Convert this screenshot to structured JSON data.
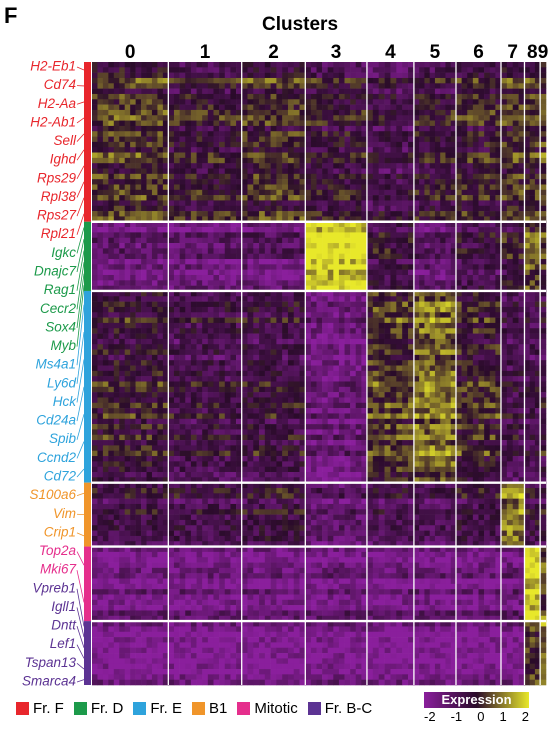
{
  "panel_letter": "F",
  "colors": {
    "Fr. F": "#e8262c",
    "Fr. D": "#1c9a4a",
    "Fr. E": "#2ea3dc",
    "B1": "#f0952a",
    "Mitotic": "#e52e8c",
    "Fr. B-C": "#5c3393",
    "low": "#8a1f9c",
    "mid": "#2a0b2a",
    "high": "#e8e82a"
  },
  "legend": {
    "items": [
      "Fr. F",
      "Fr. D",
      "Fr. E",
      "B1",
      "Mitotic",
      "Fr. B-C"
    ]
  },
  "colorbar": {
    "title": "Expression",
    "ticks": [
      "-2",
      "-1",
      "0",
      "1",
      "2"
    ]
  },
  "chart_data": {
    "type": "heatmap",
    "title": "Clusters",
    "clusters": [
      "0",
      "1",
      "2",
      "3",
      "4",
      "5",
      "6",
      "7",
      "8",
      "9"
    ],
    "cluster_widths": [
      78,
      75,
      65,
      63,
      48,
      43,
      46,
      24,
      16,
      6
    ],
    "color_scale": [
      -2,
      2
    ],
    "genes": [
      {
        "name": "H2-Eb1",
        "group": "Fr. F"
      },
      {
        "name": "Cd74",
        "group": "Fr. F"
      },
      {
        "name": "H2-Aa",
        "group": "Fr. F"
      },
      {
        "name": "H2-Ab1",
        "group": "Fr. F"
      },
      {
        "name": "Sell",
        "group": "Fr. F"
      },
      {
        "name": "Ighd",
        "group": "Fr. F"
      },
      {
        "name": "Rps29",
        "group": "Fr. F"
      },
      {
        "name": "Rpl38",
        "group": "Fr. F"
      },
      {
        "name": "Rps27",
        "group": "Fr. F"
      },
      {
        "name": "Rpl21",
        "group": "Fr. F"
      },
      {
        "name": "Igkc",
        "group": "Fr. D"
      },
      {
        "name": "Dnajc7",
        "group": "Fr. D"
      },
      {
        "name": "Rag1",
        "group": "Fr. D"
      },
      {
        "name": "Cecr2",
        "group": "Fr. D"
      },
      {
        "name": "Sox4",
        "group": "Fr. D"
      },
      {
        "name": "Myb",
        "group": "Fr. D"
      },
      {
        "name": "Ms4a1",
        "group": "Fr. E"
      },
      {
        "name": "Ly6d",
        "group": "Fr. E"
      },
      {
        "name": "Hck",
        "group": "Fr. E"
      },
      {
        "name": "Cd24a",
        "group": "Fr. E"
      },
      {
        "name": "Spib",
        "group": "Fr. E"
      },
      {
        "name": "Ccnd2",
        "group": "Fr. E"
      },
      {
        "name": "Cd72",
        "group": "Fr. E"
      },
      {
        "name": "S100a6",
        "group": "B1"
      },
      {
        "name": "Vim",
        "group": "B1"
      },
      {
        "name": "Crip1",
        "group": "B1"
      },
      {
        "name": "Top2a",
        "group": "Mitotic"
      },
      {
        "name": "Mki67",
        "group": "Mitotic"
      },
      {
        "name": "Vpreb1",
        "group": "Fr. B-C"
      },
      {
        "name": "Igll1",
        "group": "Fr. B-C"
      },
      {
        "name": "Dntt",
        "group": "Fr. B-C"
      },
      {
        "name": "Lef1",
        "group": "Fr. B-C"
      },
      {
        "name": "Tspan13",
        "group": "Fr. B-C"
      },
      {
        "name": "Smarca4",
        "group": "Fr. B-C"
      }
    ],
    "row_groups": [
      {
        "group": "Fr. F",
        "rows": 30
      },
      {
        "group": "Fr. D",
        "rows": 13
      },
      {
        "group": "Fr. E",
        "rows": 36
      },
      {
        "group": "B1",
        "rows": 12
      },
      {
        "group": "Mitotic",
        "rows": 14
      },
      {
        "group": "Fr. B-C",
        "rows": 12
      }
    ],
    "group_cluster_mean": {
      "Fr. F": [
        0.2,
        -0.2,
        0.1,
        -0.3,
        -0.6,
        -0.3,
        -0.1,
        0.2,
        0.1,
        0.4
      ],
      "Fr. D": [
        -1.4,
        -1.4,
        -1.3,
        1.9,
        -0.5,
        -1.2,
        -0.7,
        -0.3,
        0.6,
        0.1
      ],
      "Fr. E": [
        -0.1,
        -0.5,
        -0.4,
        -1.4,
        0.4,
        0.9,
        0.1,
        -0.6,
        -0.6,
        -0.4
      ],
      "B1": [
        -0.5,
        -0.6,
        -0.4,
        -1.1,
        -0.7,
        -0.8,
        -0.5,
        1.0,
        -0.4,
        -0.3
      ],
      "Mitotic": [
        -1.5,
        -1.5,
        -1.5,
        -1.4,
        -1.5,
        -1.5,
        -1.5,
        -1.4,
        2.0,
        0.6
      ],
      "Fr. B-C": [
        -1.8,
        -1.8,
        -1.8,
        -1.7,
        -1.8,
        -1.8,
        -1.8,
        -1.7,
        0.4,
        1.0
      ]
    }
  }
}
